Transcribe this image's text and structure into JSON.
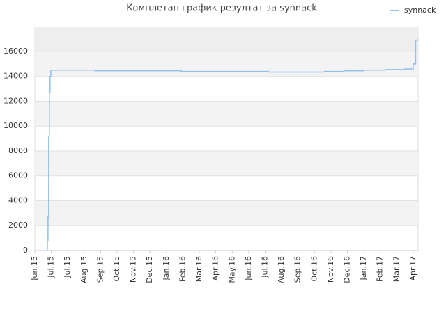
{
  "chart_data": {
    "type": "line",
    "title": "Комплетан график резултат за synnack",
    "series": [
      {
        "name": "synnack",
        "color": "#8fc0ee",
        "x": [
          0.72,
          0.76,
          0.8,
          0.84,
          0.88,
          0.92,
          0.97,
          3.64,
          8.9,
          14.2,
          17.6,
          18.8,
          20.0,
          21.3,
          22.5,
          23.0,
          23.15,
          23.25
        ],
        "values": [
          0,
          800,
          2700,
          9200,
          12700,
          14000,
          14500,
          14450,
          14400,
          14350,
          14400,
          14450,
          14500,
          14550,
          14600,
          15000,
          16900,
          17100
        ]
      }
    ],
    "step": true,
    "xlim": [
      0,
      23.3
    ],
    "xticks": [
      {
        "value": 0,
        "label": "Jun.15"
      },
      {
        "value": 1,
        "label": "Jul.15"
      },
      {
        "value": 2,
        "label": "Jul.15"
      },
      {
        "value": 3,
        "label": "Aug.15"
      },
      {
        "value": 4,
        "label": "Sep.15"
      },
      {
        "value": 5,
        "label": "Oct.15"
      },
      {
        "value": 6,
        "label": "Nov.15"
      },
      {
        "value": 7,
        "label": "Dec.15"
      },
      {
        "value": 8,
        "label": "Jan.16"
      },
      {
        "value": 9,
        "label": "Feb.16"
      },
      {
        "value": 10,
        "label": "Mar.16"
      },
      {
        "value": 11,
        "label": "Apr.16"
      },
      {
        "value": 12,
        "label": "May.16"
      },
      {
        "value": 13,
        "label": "Jun.16"
      },
      {
        "value": 14,
        "label": "Jul.16"
      },
      {
        "value": 15,
        "label": "Aug.16"
      },
      {
        "value": 16,
        "label": "Sep.16"
      },
      {
        "value": 17,
        "label": "Oct.16"
      },
      {
        "value": 18,
        "label": "Nov.16"
      },
      {
        "value": 19,
        "label": "Dec.16"
      },
      {
        "value": 20,
        "label": "Jan.17"
      },
      {
        "value": 21,
        "label": "Feb.17"
      },
      {
        "value": 22,
        "label": "Mar.17"
      },
      {
        "value": 23,
        "label": "Apr.17"
      }
    ],
    "ylim": [
      0,
      17900
    ],
    "yticks": [
      0,
      2000,
      4000,
      6000,
      8000,
      10000,
      12000,
      14000,
      16000
    ],
    "grid": true,
    "legend": "top-right"
  }
}
